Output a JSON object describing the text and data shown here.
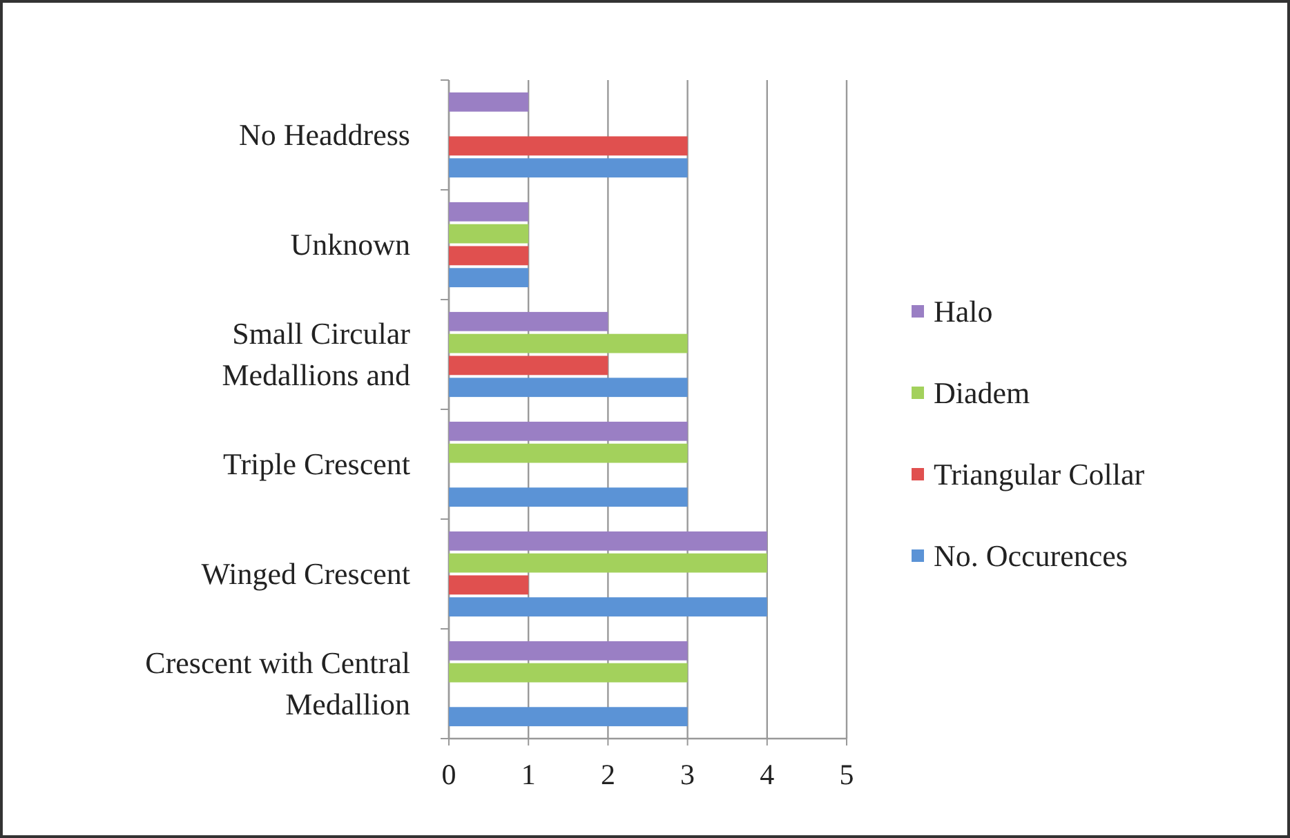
{
  "chart_data": {
    "type": "bar",
    "orientation": "horizontal",
    "categories": [
      "No Headdress",
      "Unknown",
      "Small Circular Medallions and",
      "Triple Crescent",
      "Winged Crescent",
      "Crescent with Central Medallion"
    ],
    "series": [
      {
        "name": "Halo",
        "color": "#9a7fc4",
        "values": [
          1,
          1,
          2,
          3,
          4,
          3
        ]
      },
      {
        "name": "Diadem",
        "color": "#a3d15c",
        "values": [
          0,
          1,
          3,
          3,
          4,
          3
        ]
      },
      {
        "name": "Triangular Collar",
        "color": "#e0504f",
        "values": [
          3,
          1,
          2,
          0,
          1,
          0
        ]
      },
      {
        "name": "No. Occurences",
        "color": "#5b93d6",
        "values": [
          3,
          1,
          3,
          3,
          4,
          3
        ]
      }
    ],
    "xlim": [
      0,
      5
    ],
    "xticks": [
      0,
      1,
      2,
      3,
      4,
      5
    ],
    "grid": "x",
    "legend": "right"
  }
}
